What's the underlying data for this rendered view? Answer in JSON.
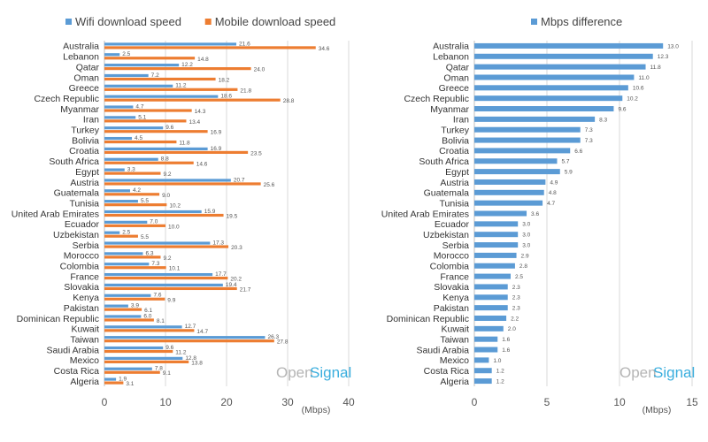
{
  "colors": {
    "wifi": "#5b9bd5",
    "mobile": "#ed7d31",
    "difference": "#5b9bd5",
    "grid": "#d9d9d9",
    "axis": "#bfbfbf"
  },
  "watermark": {
    "part1": "Open",
    "part2": "Signal"
  },
  "chart_data": [
    {
      "type": "bar",
      "orientation": "horizontal",
      "categories": [
        "Australia",
        "Lebanon",
        "Qatar",
        "Oman",
        "Greece",
        "Czech Republic",
        "Myanmar",
        "Iran",
        "Turkey",
        "Bolivia",
        "Croatia",
        "South Africa",
        "Egypt",
        "Austria",
        "Guatemala",
        "Tunisia",
        "United Arab Emirates",
        "Ecuador",
        "Uzbekistan",
        "Serbia",
        "Morocco",
        "Colombia",
        "France",
        "Slovakia",
        "Kenya",
        "Pakistan",
        "Dominican Republic",
        "Kuwait",
        "Taiwan",
        "Saudi Arabia",
        "Mexico",
        "Costa Rica",
        "Algeria"
      ],
      "series": [
        {
          "name": "Wifi download speed",
          "values": [
            21.6,
            2.5,
            12.2,
            7.2,
            11.2,
            18.6,
            4.7,
            5.1,
            9.6,
            4.5,
            16.9,
            8.8,
            3.3,
            20.7,
            4.2,
            5.5,
            15.9,
            7.0,
            2.5,
            17.3,
            6.3,
            7.3,
            17.7,
            19.4,
            7.6,
            3.9,
            6.0,
            12.7,
            26.3,
            9.6,
            12.8,
            7.8,
            1.9
          ]
        },
        {
          "name": "Mobile download speed",
          "values": [
            34.6,
            14.8,
            24.0,
            18.2,
            21.8,
            28.8,
            14.3,
            13.4,
            16.9,
            11.8,
            23.5,
            14.6,
            9.2,
            25.6,
            9.0,
            10.2,
            19.5,
            10.0,
            5.5,
            20.3,
            9.2,
            10.1,
            20.2,
            21.7,
            9.9,
            6.1,
            8.1,
            14.7,
            27.8,
            11.2,
            13.8,
            9.1,
            3.1
          ]
        }
      ],
      "xticks": [
        "0",
        "10",
        "20",
        "30",
        "40"
      ],
      "xlim": [
        0,
        40
      ],
      "xunit": "(Mbps)",
      "legend_position": "top",
      "grid": true
    },
    {
      "type": "bar",
      "orientation": "horizontal",
      "categories": [
        "Australia",
        "Lebanon",
        "Qatar",
        "Oman",
        "Greece",
        "Czech Republic",
        "Myanmar",
        "Iran",
        "Turkey",
        "Bolivia",
        "Croatia",
        "South Africa",
        "Egypt",
        "Austria",
        "Guatemala",
        "Tunisia",
        "United Arab Emirates",
        "Ecuador",
        "Uzbekistan",
        "Serbia",
        "Morocco",
        "Colombia",
        "France",
        "Slovakia",
        "Kenya",
        "Pakistan",
        "Dominican Republic",
        "Kuwait",
        "Taiwan",
        "Saudi Arabia",
        "Mexico",
        "Costa Rica",
        "Algeria"
      ],
      "series": [
        {
          "name": "Mbps difference",
          "values": [
            13.0,
            12.3,
            11.8,
            11.0,
            10.6,
            10.2,
            9.6,
            8.3,
            7.3,
            7.3,
            6.6,
            5.7,
            5.9,
            4.9,
            4.8,
            4.7,
            3.6,
            3.0,
            3.0,
            3.0,
            2.9,
            2.8,
            2.5,
            2.3,
            2.3,
            2.3,
            2.2,
            2.0,
            1.6,
            1.6,
            1.0,
            1.2,
            1.2
          ]
        }
      ],
      "labels": [
        "13.0",
        "12.3",
        "11.8",
        "11.0",
        "10.6",
        "10.2",
        "9.6",
        "8.3",
        "7.3",
        "7.3",
        "6.6",
        "5.7",
        "5.9",
        "4.9",
        "4.8",
        "4.7",
        "3.6",
        "3.0",
        "3.0",
        "3.0",
        "2.9",
        "2.8",
        "2.5",
        "2.3",
        "2.3",
        "2.3",
        "2.2",
        "2.0",
        "1.6",
        "1.6",
        "1.0",
        "1.2",
        "1.2"
      ],
      "xticks": [
        "0",
        "5",
        "10",
        "15"
      ],
      "xlim": [
        0,
        15
      ],
      "xunit": "(Mbps)",
      "legend_position": "top",
      "grid": true
    }
  ]
}
